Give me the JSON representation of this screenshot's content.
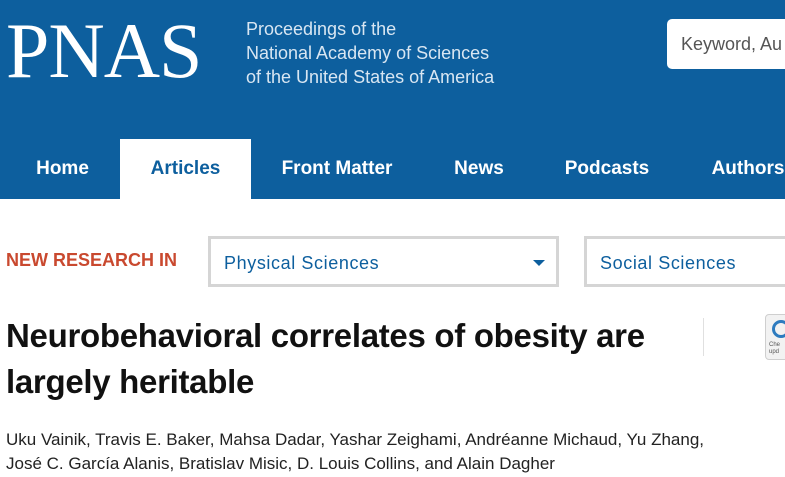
{
  "header": {
    "logo": "PNAS",
    "subtitle_lines": [
      "Proceedings of the",
      "National Academy of Sciences",
      "of the United States of America"
    ],
    "search_placeholder": "Keyword, Au"
  },
  "nav": {
    "items": [
      {
        "label": "Home",
        "active": false
      },
      {
        "label": "Articles",
        "active": true
      },
      {
        "label": "Front Matter",
        "active": false
      },
      {
        "label": "News",
        "active": false
      },
      {
        "label": "Podcasts",
        "active": false
      },
      {
        "label": "Authors",
        "active": false
      }
    ]
  },
  "new_research": {
    "label": "NEW RESEARCH IN",
    "selects": [
      {
        "value": "Physical Sciences",
        "icon": "chevron-down-icon"
      },
      {
        "value": "Social Sciences"
      }
    ]
  },
  "article": {
    "title_lines": [
      "Neurobehavioral correlates of obesity are",
      "largely heritable"
    ],
    "badge_text": [
      "Che",
      "upd"
    ],
    "author_lines": [
      "Uku Vainik, Travis E. Baker, Mahsa Dadar, Yashar Zeighami, Andréanne Michaud, Yu Zhang,",
      "José C. García Alanis, Bratislav Misic, D. Louis Collins, and Alain Dagher"
    ]
  },
  "colors": {
    "brand_blue": "#0d5f9e",
    "accent_red": "#c9492f"
  }
}
